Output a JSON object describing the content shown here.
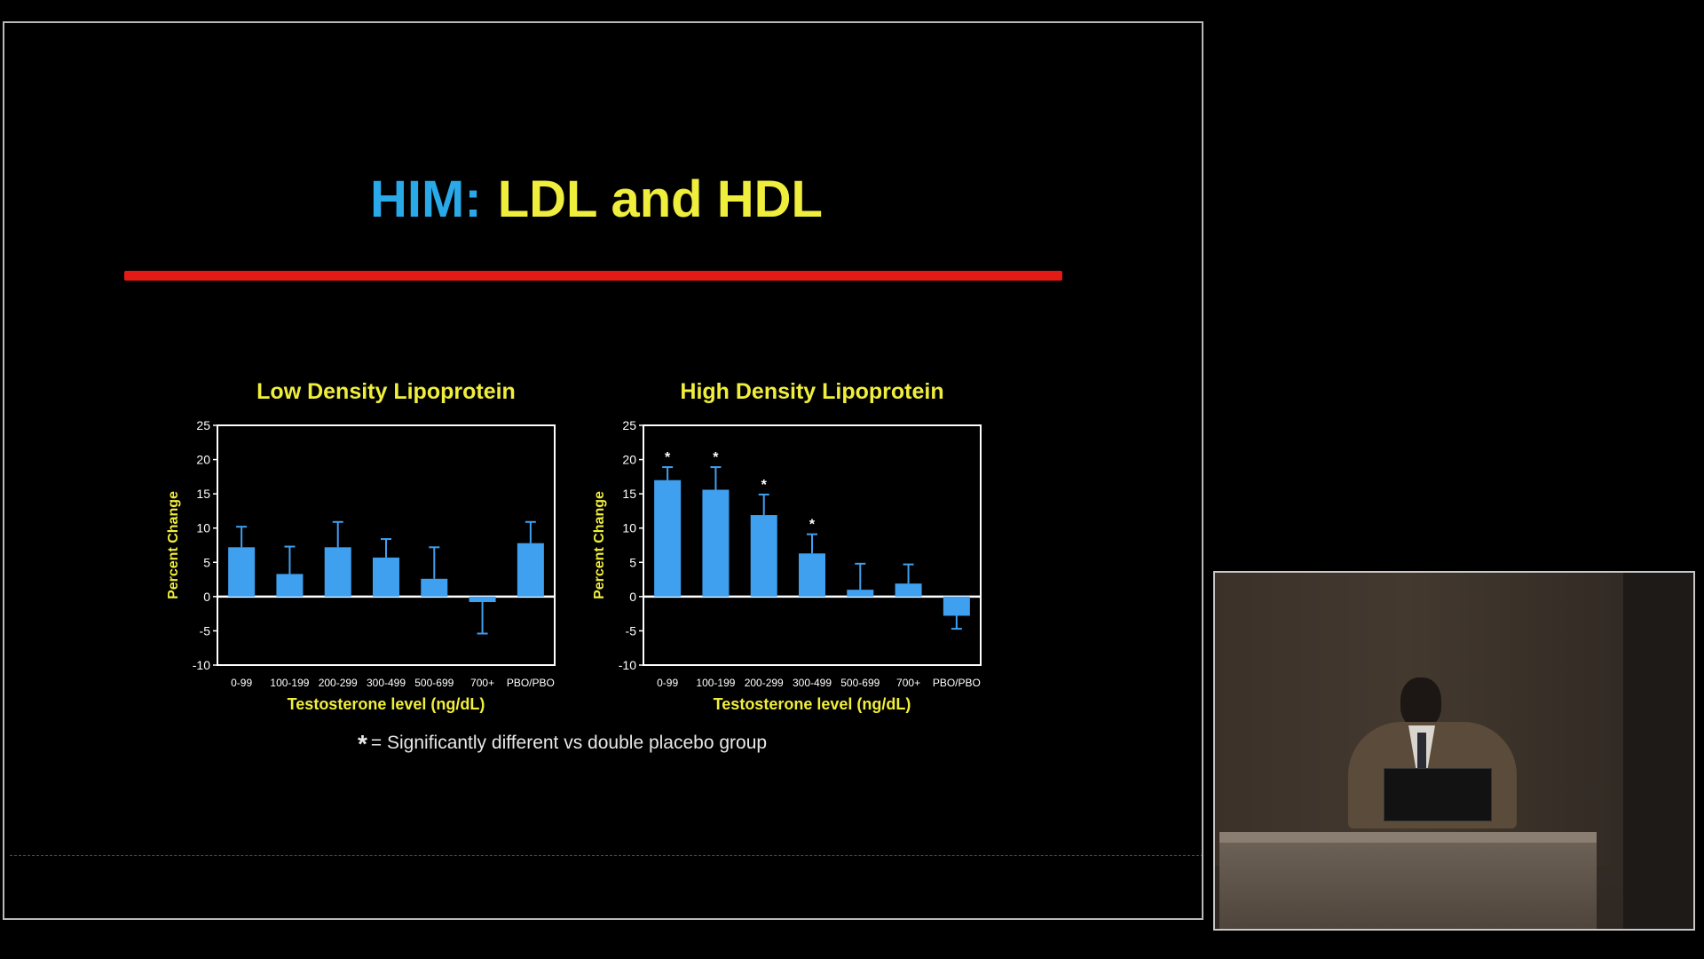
{
  "slide": {
    "title_part1": "HIM:",
    "title_part2": "LDL and HDL",
    "footnote_star": "*",
    "footnote_text": "= Significantly different vs double placebo group"
  },
  "colors": {
    "title_accent": "#29a9e8",
    "title_main": "#f0ee3c",
    "underline": "#e41b14",
    "bar": "#3fa0f0",
    "axis_text": "#f0ee3c"
  },
  "chart_data": [
    {
      "type": "bar",
      "title": "Low Density Lipoprotein",
      "xlabel": "Testosterone level (ng/dL)",
      "ylabel": "Percent Change",
      "ylim": [
        -10,
        25
      ],
      "yticks": [
        25,
        20,
        15,
        10,
        5,
        0,
        -5,
        -10
      ],
      "categories": [
        "0-99",
        "100-199",
        "200-299",
        "300-499",
        "500-699",
        "700+",
        "PBO/PBO"
      ],
      "values": [
        7.2,
        3.3,
        7.2,
        5.7,
        2.6,
        -0.8,
        7.8
      ],
      "error_upper": [
        10.2,
        7.3,
        10.9,
        8.4,
        7.2,
        -5.4,
        10.9
      ],
      "significant": [
        false,
        false,
        false,
        false,
        false,
        false,
        false
      ]
    },
    {
      "type": "bar",
      "title": "High Density Lipoprotein",
      "xlabel": "Testosterone level (ng/dL)",
      "ylabel": "Percent Change",
      "ylim": [
        -10,
        25
      ],
      "yticks": [
        25,
        20,
        15,
        10,
        5,
        0,
        -5,
        -10
      ],
      "categories": [
        "0-99",
        "100-199",
        "200-299",
        "300-499",
        "500-699",
        "700+",
        "PBO/PBO"
      ],
      "values": [
        17.0,
        15.6,
        11.9,
        6.3,
        1.0,
        1.9,
        -2.8
      ],
      "error_upper": [
        18.9,
        18.9,
        14.9,
        9.1,
        4.8,
        4.7,
        -4.7
      ],
      "significant": [
        true,
        true,
        true,
        true,
        false,
        false,
        false
      ]
    }
  ]
}
